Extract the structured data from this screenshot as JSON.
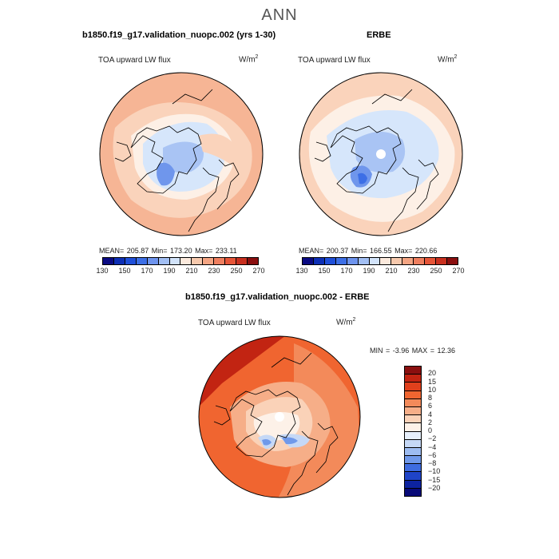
{
  "season": "ANN",
  "panels": [
    {
      "title": "b1850.f19_g17.validation_nuopc.002 (yrs 1-30)",
      "variable": "TOA upward LW flux",
      "units_base": "W/m",
      "units_exp": "2",
      "stats": "MEAN= 205.87   Min= 173.20   Max= 233.11"
    },
    {
      "title": "ERBE",
      "variable": "TOA upward LW flux",
      "units_base": "W/m",
      "units_exp": "2",
      "stats": "MEAN= 200.37   Min= 166.55   Max= 220.66"
    },
    {
      "title": "b1850.f19_g17.validation_nuopc.002 - ERBE",
      "variable": "TOA upward LW flux",
      "units_base": "W/m",
      "units_exp": "2",
      "stats": "MIN =   -3.96 MAX =   12.36"
    }
  ],
  "colorbar_main": {
    "colors": [
      "#0a0a82",
      "#0d2fb5",
      "#1f4fd9",
      "#3d6fe6",
      "#6e94ee",
      "#a2bff4",
      "#d2e3fa",
      "#fbe9dc",
      "#f7c9ad",
      "#f4a583",
      "#ef7f5f",
      "#e65538",
      "#c9301f",
      "#8a0f0f"
    ],
    "labels": [
      "130",
      "150",
      "170",
      "190",
      "210",
      "230",
      "250",
      "270"
    ]
  },
  "colorbar_diff": {
    "colors": [
      "#8a0f0f",
      "#c22412",
      "#e0401c",
      "#f06530",
      "#f38a5a",
      "#f6ae88",
      "#fad2b8",
      "#fdf1e8",
      "#e6effb",
      "#c5d8f6",
      "#9dbcf1",
      "#7099ea",
      "#3e6ce0",
      "#1f44c8",
      "#0d23a0",
      "#080a78"
    ],
    "labels": [
      "20",
      "15",
      "10",
      "8",
      "6",
      "4",
      "2",
      "0",
      "−2",
      "−4",
      "−6",
      "−8",
      "−10",
      "−15",
      "−20"
    ]
  }
}
